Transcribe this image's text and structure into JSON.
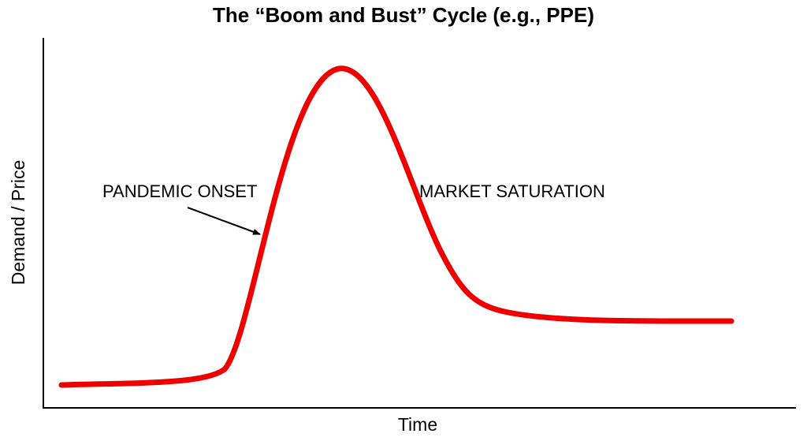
{
  "title": "The “Boom and Bust” Cycle (e.g., PPE)",
  "x_axis_label": "Time",
  "y_axis_label": "Demand / Price",
  "annotations": [
    "PANDEMIC ONSET",
    "MARKET SATURATION"
  ]
}
